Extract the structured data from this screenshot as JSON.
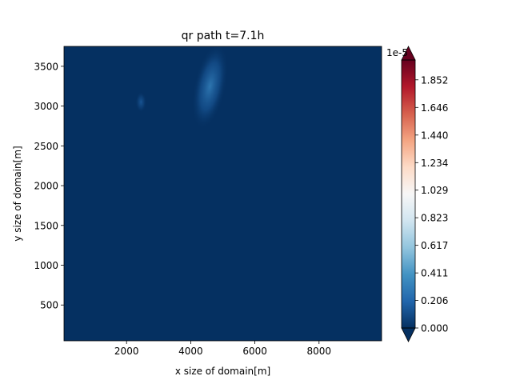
{
  "chart_data": {
    "type": "heatmap",
    "title": "qr path t=7.1h",
    "xlabel": "x size of domain[m]",
    "ylabel": "y size of domain[m]",
    "xlim": [
      50,
      9950
    ],
    "ylim": [
      50,
      3750
    ],
    "x_ticks": [
      2000,
      4000,
      6000,
      8000
    ],
    "x_tick_labels": [
      "2000",
      "4000",
      "6000",
      "8000"
    ],
    "y_ticks": [
      500,
      1000,
      1500,
      2000,
      2500,
      3000,
      3500
    ],
    "y_tick_labels": [
      "500",
      "1000",
      "1500",
      "2000",
      "2500",
      "3000",
      "3500"
    ],
    "colormap": "RdBu_r",
    "background_color": "#053061",
    "colorbar": {
      "min": 0.0,
      "max": 2.0,
      "multiplier_label": "1e-5",
      "ticks": [
        0.0,
        0.206,
        0.411,
        0.617,
        0.823,
        1.029,
        1.234,
        1.44,
        1.646,
        1.852
      ],
      "tick_labels": [
        "0.000",
        "0.206",
        "0.411",
        "0.617",
        "0.823",
        "1.029",
        "1.234",
        "1.440",
        "1.646",
        "1.852"
      ],
      "extend": "both",
      "colors": [
        "#053061",
        "#2166ac",
        "#4393c3",
        "#92c5de",
        "#d1e5f0",
        "#f7f7f7",
        "#fddbc7",
        "#f4a582",
        "#d6604d",
        "#b2182b",
        "#67001f"
      ]
    },
    "features": [
      {
        "name": "elongated blob",
        "x": 4600,
        "y": 3250,
        "rx": 500,
        "ry": 550,
        "value": 0.3
      },
      {
        "name": "small blob",
        "x": 2450,
        "y": 3050,
        "rx": 170,
        "ry": 130,
        "value": 0.15
      }
    ]
  }
}
